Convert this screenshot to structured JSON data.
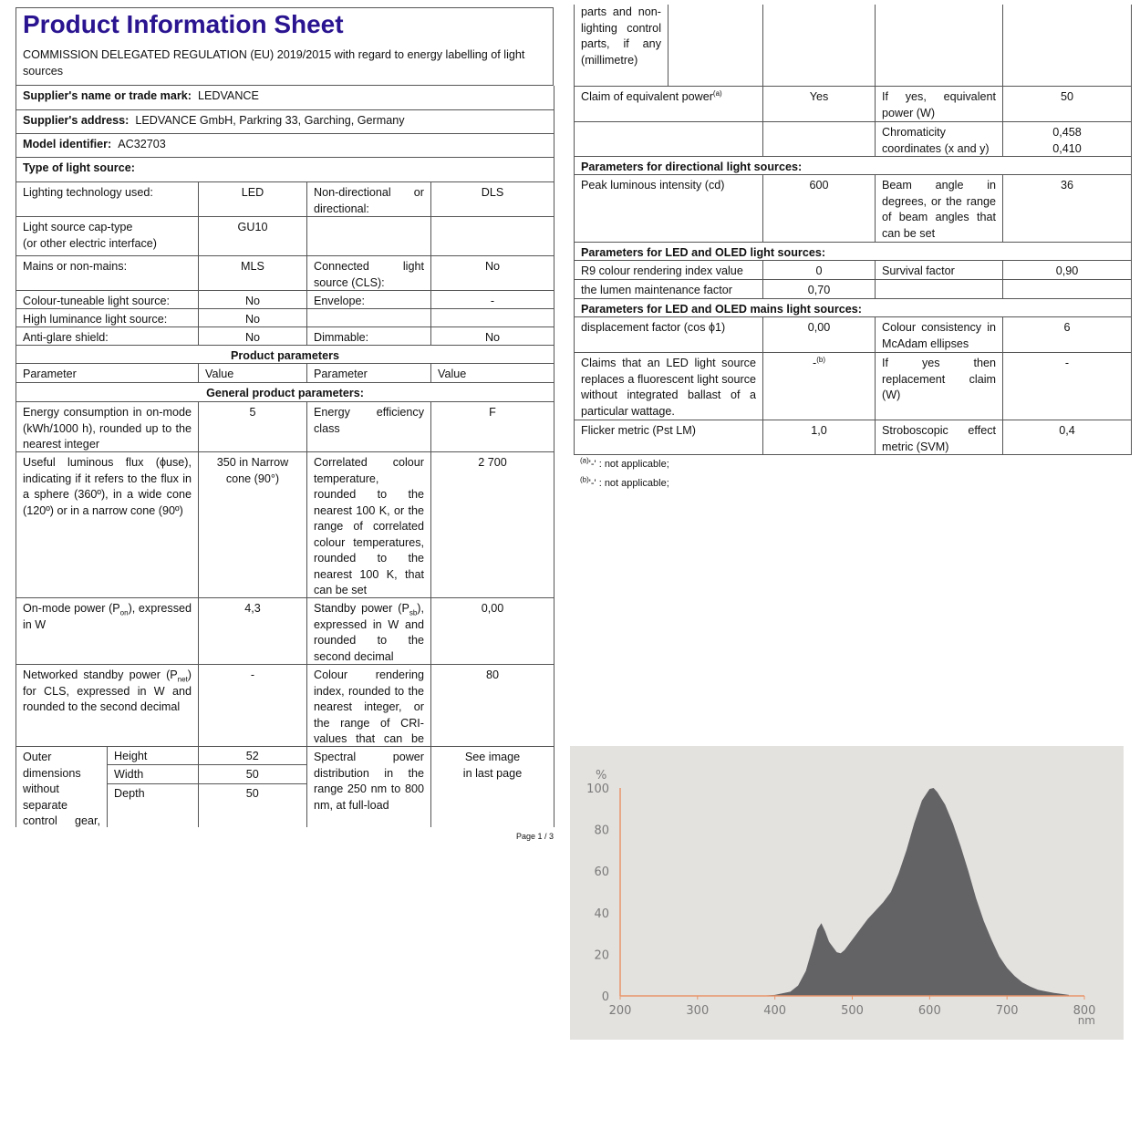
{
  "title": "Product Information Sheet",
  "regulation": "COMMISSION DELEGATED REGULATION (EU) 2019/2015 with regard to energy labelling of light sources",
  "page": "Page 1 / 3",
  "left_rows": [
    {
      "kind": "kv",
      "label": "Supplier's name or trade mark:",
      "value": "LEDVANCE"
    },
    {
      "kind": "kv",
      "label": "Supplier's address:",
      "value": "LEDVANCE GmbH, Parkring 33, Garching, Germany"
    },
    {
      "kind": "kv",
      "label": "Model identifier:",
      "value": "AC32703"
    },
    {
      "kind": "heading",
      "text": "Type of light source:"
    },
    {
      "kind": "four",
      "cells": [
        "Lighting technology used:",
        "LED",
        "Non-directional or directional:",
        "DLS"
      ]
    },
    {
      "kind": "four",
      "cells": [
        "Light source cap-type\n(or other electric interface)",
        "GU10",
        "",
        ""
      ]
    },
    {
      "kind": "four",
      "cells": [
        "Mains or non-mains:",
        "MLS",
        "Connected light source (CLS):",
        "No"
      ]
    },
    {
      "kind": "four",
      "cells": [
        "Colour-tuneable light source:",
        "No",
        "Envelope:",
        "-"
      ]
    },
    {
      "kind": "four",
      "cells": [
        "High luminance light source:",
        "No",
        "",
        ""
      ]
    },
    {
      "kind": "four",
      "cells": [
        "Anti-glare shield:",
        "No",
        "Dimmable:",
        "No"
      ]
    },
    {
      "kind": "center",
      "text": "Product parameters"
    },
    {
      "kind": "header",
      "cells": [
        "Parameter",
        "Value",
        "Parameter",
        "Value"
      ]
    },
    {
      "kind": "center",
      "text": "General product parameters:"
    },
    {
      "kind": "four",
      "cells": [
        "Energy consumption in on-mode (kWh/1000 h), rounded up to the nearest integer",
        "5",
        "Energy efficiency class",
        "F"
      ]
    },
    {
      "kind": "four",
      "cells": [
        "Useful luminous flux (ϕuse), indicating if it refers to the flux in a sphere (360º), in a wide cone (120º) or in a narrow cone (90º)",
        "350 in Narrow cone (90°)",
        "Correlated colour temperature, rounded to the nearest 100 K, or the range of correlated colour temperatures, rounded to the nearest 100 K, that can be set",
        "2 700"
      ]
    },
    {
      "kind": "four",
      "cells": [
        [
          {
            "t": "On-mode power (P"
          },
          {
            "t": "on",
            "s": "sub"
          },
          {
            "t": "), expressed in W"
          }
        ],
        "4,3",
        [
          {
            "t": "Standby power (P"
          },
          {
            "t": "sb",
            "s": "sub"
          },
          {
            "t": "), expressed in W and rounded to the second decimal"
          }
        ],
        "0,00"
      ]
    },
    {
      "kind": "four",
      "cells": [
        [
          {
            "t": "Networked standby power (P"
          },
          {
            "t": "net",
            "s": "sub"
          },
          {
            "t": ") for CLS, expressed in W and rounded to the second decimal"
          }
        ],
        "-",
        "Colour rendering index, rounded to the nearest integer, or the range of CRI-values that can be set",
        "80"
      ]
    },
    {
      "kind": "dims",
      "label": "Outer dimensions without separate control gear, lighting control",
      "dims": [
        [
          "Height",
          "52"
        ],
        [
          "Width",
          "50"
        ],
        [
          "Depth",
          "50"
        ]
      ],
      "cells": [
        "Spectral power distribution in the range 250 nm to 800 nm, at full-load",
        "See image\nin last page"
      ]
    }
  ],
  "right_rows": [
    {
      "kind": "dimscont",
      "text": "parts and non-lighting control parts, if any (millimetre)"
    },
    {
      "kind": "four",
      "cells": [
        [
          {
            "t": "Claim of equivalent power"
          },
          {
            "t": "(a)",
            "s": "sup"
          }
        ],
        "Yes",
        "If yes, equivalent power (W)",
        "50"
      ]
    },
    {
      "kind": "four",
      "cells": [
        "",
        "",
        "Chromaticity coordinates (x and y)",
        "0,458\n0,410"
      ]
    },
    {
      "kind": "heading",
      "text": "Parameters for directional light sources:"
    },
    {
      "kind": "four",
      "cells": [
        "Peak luminous intensity (cd)",
        "600",
        "Beam angle in degrees, or the range of beam angles that can be set",
        "36"
      ]
    },
    {
      "kind": "heading",
      "text": "Parameters for LED and OLED light sources:"
    },
    {
      "kind": "four",
      "cells": [
        "R9 colour rendering index value",
        "0",
        "Survival factor",
        "0,90"
      ]
    },
    {
      "kind": "four",
      "cells": [
        "the lumen maintenance factor",
        "0,70",
        "",
        ""
      ]
    },
    {
      "kind": "heading",
      "text": "Parameters for LED and OLED mains light sources:"
    },
    {
      "kind": "four",
      "cells": [
        "displacement factor (cos ϕ1)",
        "0,00",
        "Colour consistency in McAdam ellipses",
        "6"
      ]
    },
    {
      "kind": "four",
      "cells": [
        "Claims that an LED light source replaces a fluorescent light source without integrated ballast of a particular wattage.",
        [
          {
            "t": "-"
          },
          {
            "t": "(b)",
            "s": "sup"
          }
        ],
        "If yes then replacement claim (W)",
        "-"
      ]
    },
    {
      "kind": "four",
      "cells": [
        "Flicker metric (Pst LM)",
        "1,0",
        "Stroboscopic effect metric (SVM)",
        "0,4"
      ]
    }
  ],
  "footnotes": [
    [
      {
        "t": "(a)",
        "s": "sup"
      },
      {
        "t": "'-' : not applicable;"
      }
    ],
    [
      {
        "t": "(b)",
        "s": "sup"
      },
      {
        "t": "'-' : not applicable;"
      }
    ]
  ],
  "chart_data": {
    "type": "area",
    "title": "",
    "xlabel": "nm",
    "ylabel": "%",
    "xlim": [
      200,
      800
    ],
    "ylim": [
      0,
      100
    ],
    "xticks": [
      200,
      300,
      400,
      500,
      600,
      700,
      800
    ],
    "yticks": [
      0,
      20,
      40,
      60,
      80,
      100
    ],
    "grid": false,
    "colors": {
      "fill": "#636265",
      "axis": "#e8956a",
      "background": "#e4e2df",
      "tick_text": "#7a7a7a"
    },
    "x": [
      380,
      400,
      420,
      430,
      440,
      450,
      455,
      460,
      465,
      470,
      480,
      485,
      490,
      500,
      510,
      520,
      530,
      540,
      550,
      560,
      570,
      580,
      590,
      600,
      605,
      610,
      620,
      630,
      640,
      650,
      660,
      670,
      680,
      690,
      700,
      710,
      720,
      730,
      740,
      750,
      760,
      770,
      780
    ],
    "y": [
      0,
      0.5,
      2,
      5,
      12,
      25,
      32,
      35,
      31,
      26,
      21,
      20.5,
      22,
      27,
      32,
      37,
      41,
      45,
      50,
      59,
      70,
      83,
      94,
      99.5,
      100,
      98,
      92,
      83,
      72,
      60,
      47,
      36,
      27,
      19,
      13.5,
      9.5,
      6.5,
      4.5,
      3,
      2.2,
      1.5,
      1,
      0.5
    ]
  }
}
